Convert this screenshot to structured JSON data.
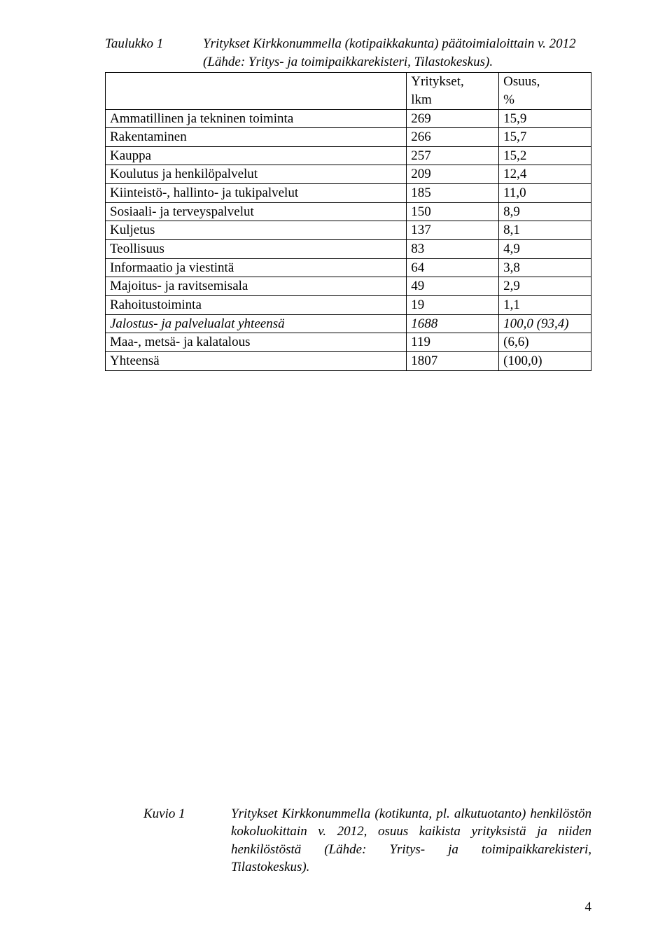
{
  "tableCaption": {
    "label": "Taulukko 1",
    "text": "Yritykset Kirkkonummella (kotipaikkakunta) päätoimialoittain v. 2012 (Lähde: Yritys- ja toimipaikkarekisteri, Tilastokeskus)."
  },
  "table": {
    "header": {
      "col1": "",
      "col2a": "Yritykset,",
      "col2b": "lkm",
      "col3a": "Osuus,",
      "col3b": "%"
    },
    "rows": [
      {
        "label": "Ammatillinen ja tekninen toiminta",
        "v1": "269",
        "v2": "15,9",
        "italic": false,
        "bold": false
      },
      {
        "label": "Rakentaminen",
        "v1": "266",
        "v2": "15,7",
        "italic": false,
        "bold": false
      },
      {
        "label": "Kauppa",
        "v1": "257",
        "v2": "15,2",
        "italic": false,
        "bold": false
      },
      {
        "label": "Koulutus ja henkilöpalvelut",
        "v1": "209",
        "v2": "12,4",
        "italic": false,
        "bold": false
      },
      {
        "label": "Kiinteistö-, hallinto- ja tukipalvelut",
        "v1": "185",
        "v2": "11,0",
        "italic": false,
        "bold": false
      },
      {
        "label": "Sosiaali- ja terveyspalvelut",
        "v1": "150",
        "v2": "8,9",
        "italic": false,
        "bold": false
      },
      {
        "label": "Kuljetus",
        "v1": "137",
        "v2": "8,1",
        "italic": false,
        "bold": false
      },
      {
        "label": "Teollisuus",
        "v1": "83",
        "v2": "4,9",
        "italic": false,
        "bold": false
      },
      {
        "label": "Informaatio ja viestintä",
        "v1": "64",
        "v2": "3,8",
        "italic": false,
        "bold": false
      },
      {
        "label": "Majoitus- ja ravitsemisala",
        "v1": "49",
        "v2": "2,9",
        "italic": false,
        "bold": false
      },
      {
        "label": "Rahoitustoiminta",
        "v1": "19",
        "v2": "1,1",
        "italic": false,
        "bold": false
      },
      {
        "label": "Jalostus- ja palvelualat yhteensä",
        "v1": "1688",
        "v2": "100,0 (93,4)",
        "italic": true,
        "bold": false
      },
      {
        "label": "Maa-, metsä- ja kalatalous",
        "v1": "119",
        "v2": "(6,6)",
        "italic": false,
        "bold": false
      },
      {
        "label": "Yhteensä",
        "v1": "1807",
        "v2": "(100,0)",
        "italic": false,
        "bold": true
      }
    ]
  },
  "figureCaption": {
    "label": "Kuvio 1",
    "text": "Yritykset Kirkkonummella (kotikunta, pl. alkutuotanto) henkilöstön kokoluokittain v. 2012, osuus kaikista yrityksistä ja niiden henkilöstöstä (Lähde: Yritys- ja toimipaikkarekisteri, Tilastokeskus)."
  },
  "pageNumber": "4"
}
